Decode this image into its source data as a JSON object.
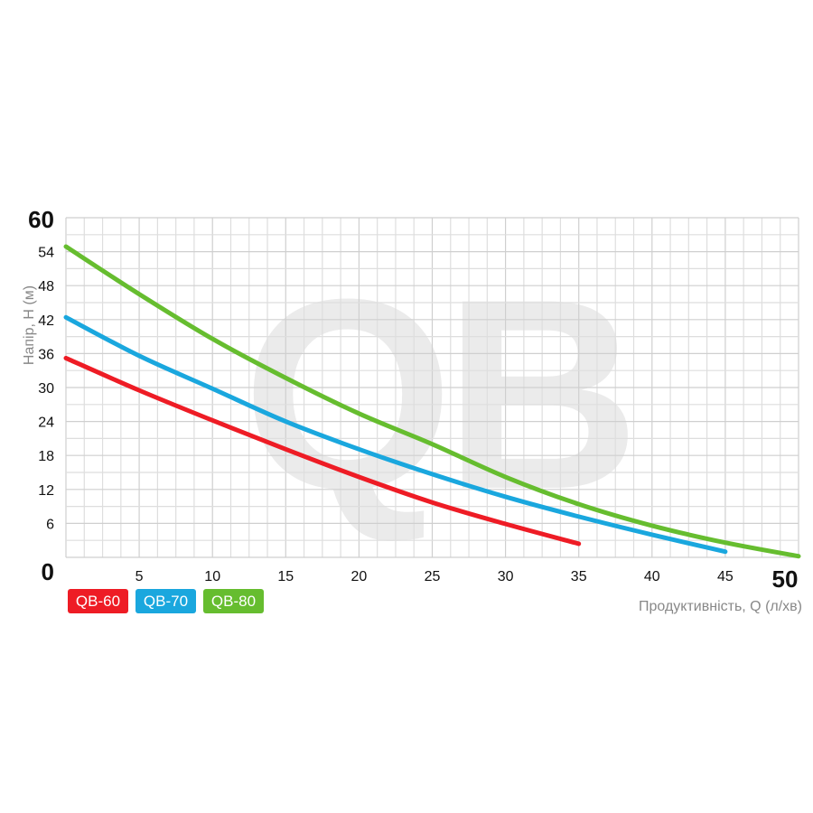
{
  "chart_data": {
    "type": "line",
    "title": "",
    "watermark": "QB",
    "xlabel": "Продуктивність, Q (л/хв)",
    "ylabel": "Напір, H (м)",
    "xlim": [
      0,
      50
    ],
    "ylim": [
      0,
      60
    ],
    "xticks": [
      "0",
      "5",
      "10",
      "15",
      "20",
      "25",
      "30",
      "35",
      "40",
      "45",
      "50"
    ],
    "yticks": [
      "0",
      "6",
      "12",
      "18",
      "24",
      "30",
      "36",
      "42",
      "48",
      "54",
      "60"
    ],
    "grid": true,
    "legend_placement": "bottom-left",
    "series": [
      {
        "name": "QB-60",
        "color": "#ee1c25",
        "x": [
          0,
          5,
          10,
          15,
          20,
          25,
          30,
          35
        ],
        "y": [
          35.2,
          29.5,
          24.2,
          19.1,
          14.2,
          9.7,
          5.9,
          2.4
        ]
      },
      {
        "name": "QB-70",
        "color": "#1aa7de",
        "x": [
          0,
          5,
          10,
          15,
          20,
          25,
          30,
          35,
          40,
          45
        ],
        "y": [
          42.4,
          35.6,
          29.8,
          24.0,
          19.1,
          14.7,
          10.7,
          7.2,
          4.0,
          1.0
        ]
      },
      {
        "name": "QB-80",
        "color": "#66bd2f",
        "x": [
          0,
          5,
          10,
          15,
          20,
          25,
          30,
          35,
          40,
          45,
          50
        ],
        "y": [
          54.9,
          46.5,
          38.6,
          31.7,
          25.4,
          20.0,
          14.2,
          9.4,
          5.6,
          2.6,
          0.2
        ]
      }
    ]
  }
}
